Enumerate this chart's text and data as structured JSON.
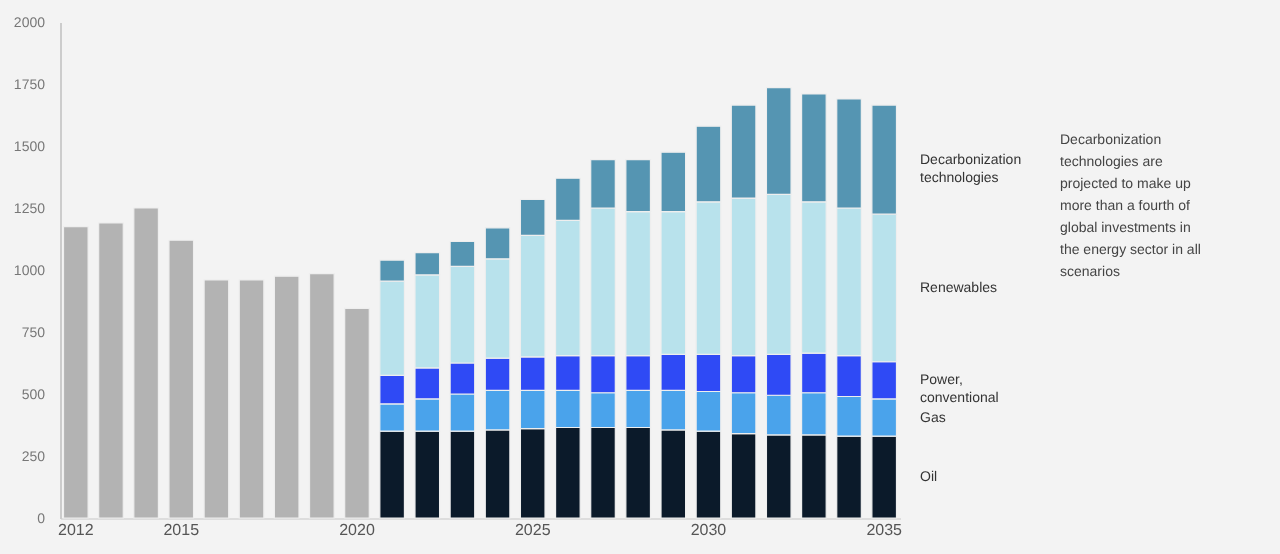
{
  "chart_data": {
    "type": "bar",
    "stacked": true,
    "categories": [
      "2012",
      null,
      null,
      "2015",
      null,
      null,
      null,
      null,
      "2020",
      null,
      null,
      null,
      null,
      "2025",
      null,
      null,
      null,
      null,
      "2030",
      null,
      null,
      null,
      null,
      "2035"
    ],
    "series": [
      {
        "color": "#b3b3b3",
        "values": [
          1175,
          1190,
          1250,
          1120,
          960,
          960,
          975,
          985,
          845,
          null,
          null,
          null,
          null,
          null,
          null,
          null,
          null,
          null,
          null,
          null,
          null,
          null,
          null,
          null
        ]
      },
      {
        "name": "Oil",
        "color": "#0b1a2a",
        "values": [
          null,
          null,
          null,
          null,
          null,
          null,
          null,
          null,
          null,
          350,
          350,
          350,
          355,
          360,
          365,
          365,
          365,
          355,
          350,
          340,
          335,
          335,
          330,
          330
        ]
      },
      {
        "name": "Gas",
        "color": "#4aa3eb",
        "values": [
          null,
          null,
          null,
          null,
          null,
          null,
          null,
          null,
          null,
          110,
          130,
          150,
          160,
          155,
          150,
          140,
          150,
          160,
          160,
          165,
          160,
          170,
          160,
          150
        ]
      },
      {
        "name": "Power, conventional",
        "color": "#2f4af5",
        "values": [
          null,
          null,
          null,
          null,
          null,
          null,
          null,
          null,
          null,
          115,
          125,
          125,
          130,
          135,
          140,
          150,
          140,
          145,
          150,
          150,
          165,
          160,
          165,
          150
        ]
      },
      {
        "name": "Renewables",
        "color": "#b8e2ec",
        "values": [
          null,
          null,
          null,
          null,
          null,
          null,
          null,
          null,
          null,
          380,
          375,
          390,
          400,
          490,
          545,
          595,
          580,
          575,
          615,
          635,
          645,
          610,
          595,
          595
        ]
      },
      {
        "name": "Decarbonization technologies",
        "color": "#5595b2",
        "values": [
          null,
          null,
          null,
          null,
          null,
          null,
          null,
          null,
          null,
          85,
          90,
          100,
          125,
          145,
          170,
          195,
          210,
          240,
          305,
          375,
          430,
          435,
          440,
          440
        ]
      }
    ],
    "ylim": [
      0,
      2000
    ],
    "yticks": [
      0,
      250,
      500,
      750,
      1000,
      1250,
      1500,
      1750,
      2000
    ],
    "grid": false,
    "legend": false,
    "annotations": [
      "Decarbonization technologies are projected to make up more than a fourth of global investments in the energy sector in all scenarios"
    ]
  }
}
